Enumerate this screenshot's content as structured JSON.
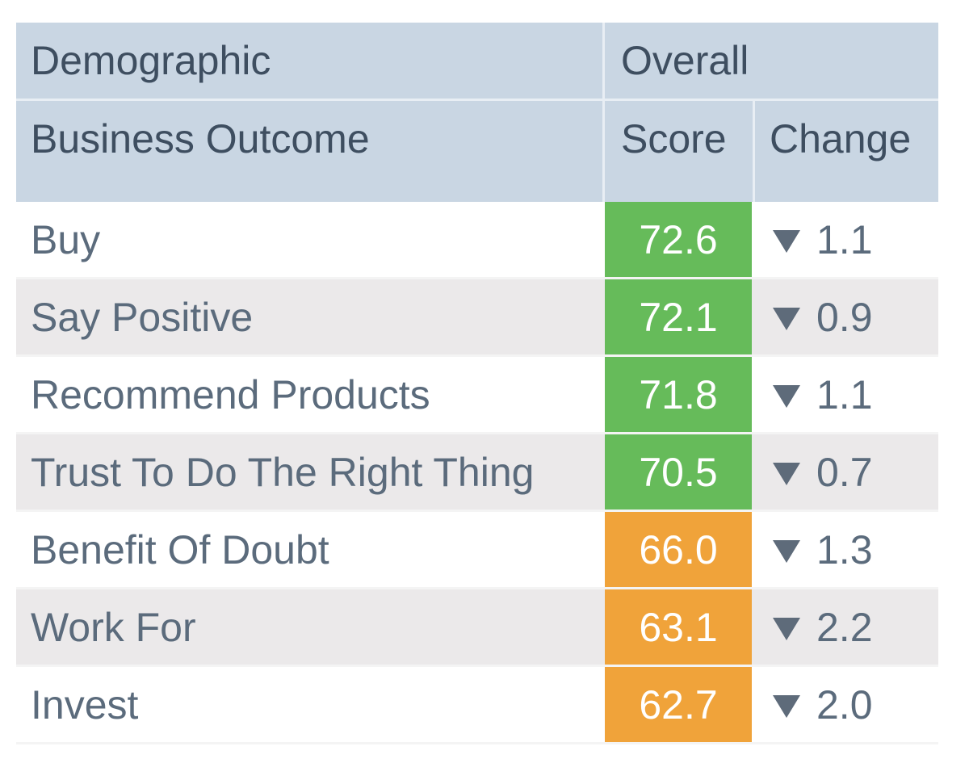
{
  "chart_data": {
    "type": "table",
    "header": {
      "demographic_label": "Demographic",
      "overall_label": "Overall",
      "outcome_label": "Business Outcome",
      "score_label": "Score",
      "change_label": "Change"
    },
    "rows": [
      {
        "label": "Buy",
        "score": "72.6",
        "change": "1.1",
        "direction": "down",
        "score_color": "#66bb5a"
      },
      {
        "label": "Say Positive",
        "score": "72.1",
        "change": "0.9",
        "direction": "down",
        "score_color": "#66bb5a"
      },
      {
        "label": "Recommend Products",
        "score": "71.8",
        "change": "1.1",
        "direction": "down",
        "score_color": "#66bb5a"
      },
      {
        "label": "Trust To Do The Right Thing",
        "score": "70.5",
        "change": "0.7",
        "direction": "down",
        "score_color": "#66bb5a"
      },
      {
        "label": "Benefit Of Doubt",
        "score": "66.0",
        "change": "1.3",
        "direction": "down",
        "score_color": "#f0a33a"
      },
      {
        "label": "Work For",
        "score": "63.1",
        "change": "2.2",
        "direction": "down",
        "score_color": "#f0a33a"
      },
      {
        "label": "Invest",
        "score": "62.7",
        "change": "2.0",
        "direction": "down",
        "score_color": "#f0a33a"
      }
    ],
    "colors": {
      "header_bg": "#c9d6e3",
      "high_score": "#66bb5a",
      "mid_score": "#f0a33a",
      "arrow": "#5e6b7a"
    }
  }
}
